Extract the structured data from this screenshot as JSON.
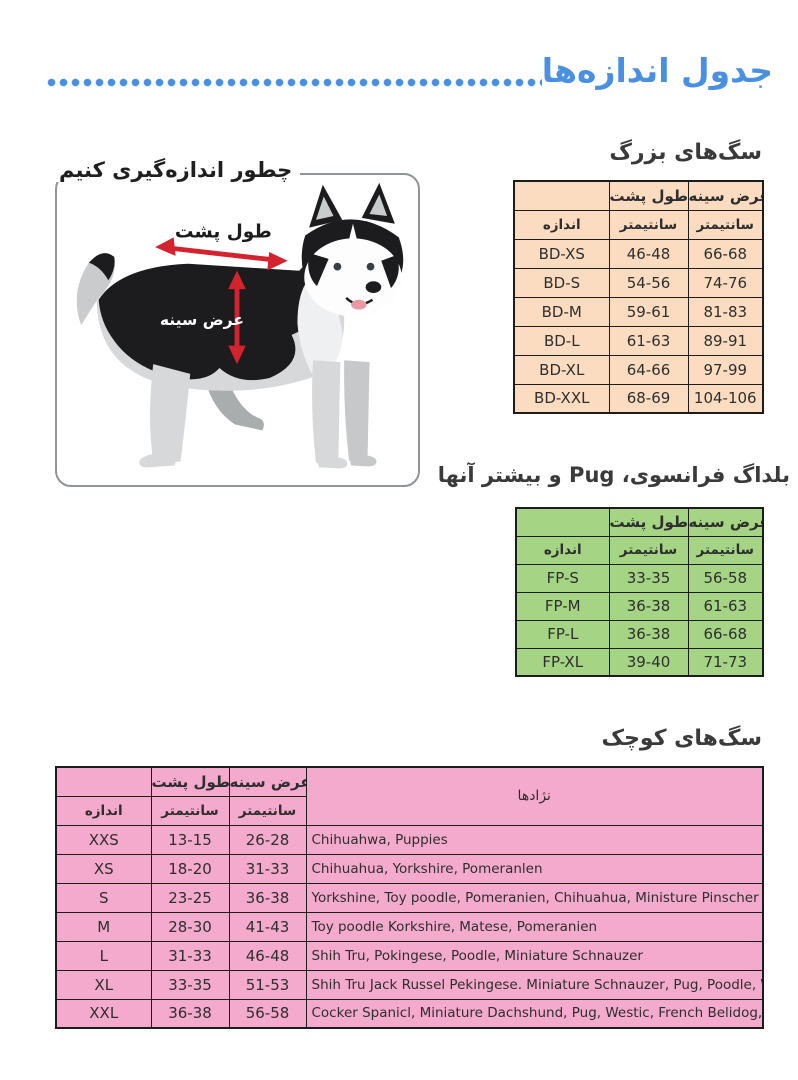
{
  "title": {
    "text": "جدول اندازه‌ها"
  },
  "sections": {
    "big_dogs": {
      "heading": "سگ‌های بزرگ",
      "headers": {
        "back": "طول پشت",
        "chest": "عرض سینه",
        "size": "اندازه",
        "unit": "سانتیمتر"
      },
      "rows": [
        {
          "size": "BD-XS",
          "back": "46-48",
          "chest": "66-68"
        },
        {
          "size": "BD-S",
          "back": "54-56",
          "chest": "74-76"
        },
        {
          "size": "BD-M",
          "back": "59-61",
          "chest": "81-83"
        },
        {
          "size": "BD-L",
          "back": "61-63",
          "chest": "89-91"
        },
        {
          "size": "BD-XL",
          "back": "64-66",
          "chest": "97-99"
        },
        {
          "size": "BD-XXL",
          "back": "68-69",
          "chest": "104-106"
        }
      ]
    },
    "measure_guide": {
      "heading": "چطور اندازه‌گیری کنیم",
      "back_arrow_label": "طول پشت",
      "chest_arrow_label": "عرض سینه"
    },
    "french_pug": {
      "heading": "بلداگ فرانسوی، Pug و بیشتر آنها",
      "headers": {
        "back": "طول پشت",
        "chest": "عرض سینه",
        "size": "اندازه",
        "unit": "سانتیمتر"
      },
      "rows": [
        {
          "size": "FP-S",
          "back": "33-35",
          "chest": "56-58"
        },
        {
          "size": "FP-M",
          "back": "36-38",
          "chest": "61-63"
        },
        {
          "size": "FP-L",
          "back": "36-38",
          "chest": "66-68"
        },
        {
          "size": "FP-XL",
          "back": "39-40",
          "chest": "71-73"
        }
      ]
    },
    "small_dogs": {
      "heading": "سگ‌های کوچک",
      "headers": {
        "back": "طول پشت",
        "chest": "عرض سینه",
        "size": "اندازه",
        "unit": "سانتیمتر",
        "breeds": "نژادها"
      },
      "rows": [
        {
          "size": "XXS",
          "back": "13-15",
          "chest": "26-28",
          "breeds": "Chihuahwa, Puppies"
        },
        {
          "size": "XS",
          "back": "18-20",
          "chest": "31-33",
          "breeds": "Chihuahua, Yorkshire, Pomeranlen"
        },
        {
          "size": "S",
          "back": "23-25",
          "chest": "36-38",
          "breeds": "Yorkshine, Toy poodle, Pomeranien, Chihuahua, Ministure Pinscher"
        },
        {
          "size": "M",
          "back": "28-30",
          "chest": "41-43",
          "breeds": "Toy poodle Korkshire, Matese, Pomeranien"
        },
        {
          "size": "L",
          "back": "31-33",
          "chest": "46-48",
          "breeds": "Shih Tru, Pokingese, Poodle, Miniature Schnauzer"
        },
        {
          "size": "XL",
          "back": "33-35",
          "chest": "51-53",
          "breeds": "Shih Tru Jack Russel Pekingese. Miniature Schnauzer, Pug, Poodle, Westle"
        },
        {
          "size": "XXL",
          "back": "36-38",
          "chest": "56-58",
          "breeds": "Cocker Spanicl, Miniature Dachshund, Pug, Westic, French Belidog, Beagle"
        }
      ]
    }
  },
  "colors": {
    "accent_blue": "#4a90e2",
    "table_big_bg": "#fbdcc1",
    "table_french_bg": "#a5d584",
    "table_small_bg": "#f3aacd",
    "arrow_red": "#d2232e"
  }
}
